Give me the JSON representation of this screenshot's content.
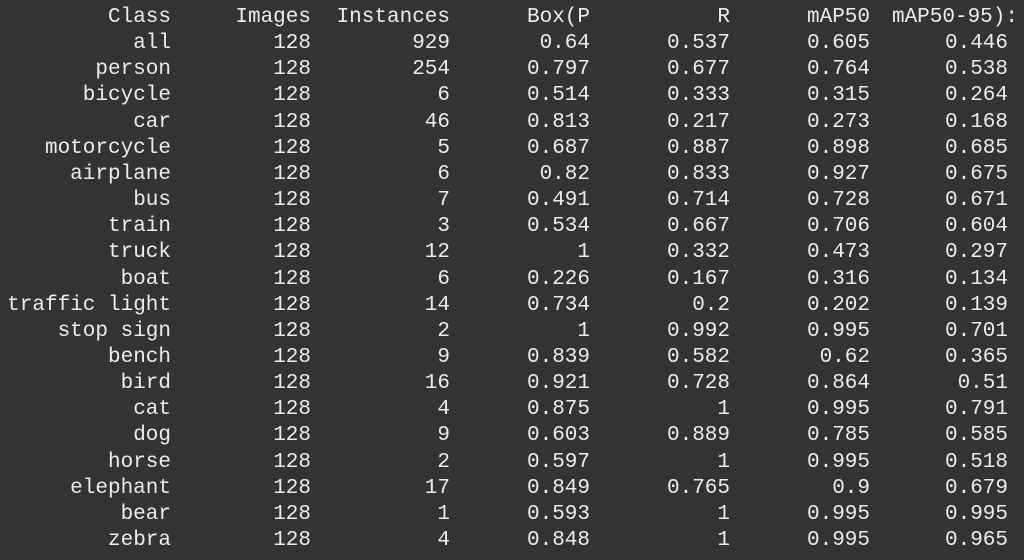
{
  "terminal": {
    "background": "#333333",
    "text_color": "#ececec",
    "headers": [
      "Class",
      "Images",
      "Instances",
      "Box(P",
      "R",
      "mAP50",
      "mAP50-95):"
    ],
    "rows": [
      [
        "all",
        "128",
        "929",
        "0.64",
        "0.537",
        "0.605",
        "0.446"
      ],
      [
        "person",
        "128",
        "254",
        "0.797",
        "0.677",
        "0.764",
        "0.538"
      ],
      [
        "bicycle",
        "128",
        "6",
        "0.514",
        "0.333",
        "0.315",
        "0.264"
      ],
      [
        "car",
        "128",
        "46",
        "0.813",
        "0.217",
        "0.273",
        "0.168"
      ],
      [
        "motorcycle",
        "128",
        "5",
        "0.687",
        "0.887",
        "0.898",
        "0.685"
      ],
      [
        "airplane",
        "128",
        "6",
        "0.82",
        "0.833",
        "0.927",
        "0.675"
      ],
      [
        "bus",
        "128",
        "7",
        "0.491",
        "0.714",
        "0.728",
        "0.671"
      ],
      [
        "train",
        "128",
        "3",
        "0.534",
        "0.667",
        "0.706",
        "0.604"
      ],
      [
        "truck",
        "128",
        "12",
        "1",
        "0.332",
        "0.473",
        "0.297"
      ],
      [
        "boat",
        "128",
        "6",
        "0.226",
        "0.167",
        "0.316",
        "0.134"
      ],
      [
        "traffic light",
        "128",
        "14",
        "0.734",
        "0.2",
        "0.202",
        "0.139"
      ],
      [
        "stop sign",
        "128",
        "2",
        "1",
        "0.992",
        "0.995",
        "0.701"
      ],
      [
        "bench",
        "128",
        "9",
        "0.839",
        "0.582",
        "0.62",
        "0.365"
      ],
      [
        "bird",
        "128",
        "16",
        "0.921",
        "0.728",
        "0.864",
        "0.51"
      ],
      [
        "cat",
        "128",
        "4",
        "0.875",
        "1",
        "0.995",
        "0.791"
      ],
      [
        "dog",
        "128",
        "9",
        "0.603",
        "0.889",
        "0.785",
        "0.585"
      ],
      [
        "horse",
        "128",
        "2",
        "0.597",
        "1",
        "0.995",
        "0.518"
      ],
      [
        "elephant",
        "128",
        "17",
        "0.849",
        "0.765",
        "0.9",
        "0.679"
      ],
      [
        "bear",
        "128",
        "1",
        "0.593",
        "1",
        "0.995",
        "0.995"
      ],
      [
        "zebra",
        "128",
        "4",
        "0.848",
        "1",
        "0.995",
        "0.965"
      ]
    ]
  }
}
